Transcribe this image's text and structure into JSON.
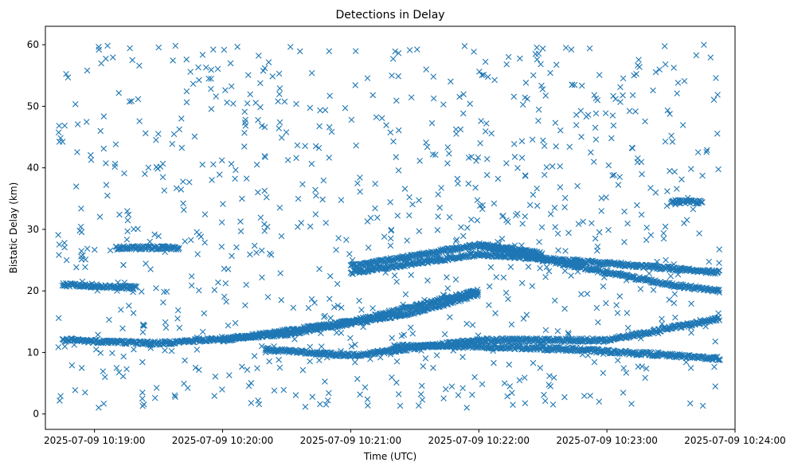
{
  "chart_data": {
    "type": "scatter",
    "title": "Detections in Delay",
    "xlabel": "Time (UTC)",
    "ylabel": "Bistatic Delay (km)",
    "marker": "x",
    "color": "#1f77b4",
    "grid": false,
    "x_type": "time",
    "xlim": [
      "2025-07-09 10:18:37",
      "2025-07-09 10:24:00"
    ],
    "ylim": [
      -2.5,
      63
    ],
    "x_ticks": [
      "2025-07-09 10:19:00",
      "2025-07-09 10:20:00",
      "2025-07-09 10:21:00",
      "2025-07-09 10:22:00",
      "2025-07-09 10:23:00",
      "2025-07-09 10:24:00"
    ],
    "y_ticks": [
      "0",
      "10",
      "20",
      "30",
      "40",
      "50",
      "60"
    ],
    "tracks": [
      {
        "x": [
          "2025-07-09 10:18:45",
          "2025-07-09 10:19:30",
          "2025-07-09 10:20:30",
          "2025-07-09 10:21:30",
          "2025-07-09 10:22:00"
        ],
        "y": [
          12,
          11.5,
          13,
          16.5,
          19.5
        ]
      },
      {
        "x": [
          "2025-07-09 10:20:00",
          "2025-07-09 10:21:00",
          "2025-07-09 10:21:30",
          "2025-07-09 10:22:00"
        ],
        "y": [
          12,
          15,
          17.5,
          20
        ]
      },
      {
        "x": [
          "2025-07-09 10:20:20",
          "2025-07-09 10:21:00",
          "2025-07-09 10:22:00",
          "2025-07-09 10:23:00",
          "2025-07-09 10:23:53"
        ],
        "y": [
          10.5,
          9.5,
          12,
          12,
          15.5
        ]
      },
      {
        "x": [
          "2025-07-09 10:21:00",
          "2025-07-09 10:22:00",
          "2025-07-09 10:23:00",
          "2025-07-09 10:23:53"
        ],
        "y": [
          23,
          26,
          24.5,
          23
        ]
      },
      {
        "x": [
          "2025-07-09 10:21:00",
          "2025-07-09 10:22:00",
          "2025-07-09 10:22:30"
        ],
        "y": [
          24,
          27.5,
          26
        ]
      },
      {
        "x": [
          "2025-07-09 10:22:00",
          "2025-07-09 10:22:45",
          "2025-07-09 10:23:30",
          "2025-07-09 10:23:53"
        ],
        "y": [
          27.5,
          24,
          21,
          20
        ]
      },
      {
        "x": [
          "2025-07-09 10:21:20",
          "2025-07-09 10:22:00",
          "2025-07-09 10:22:45",
          "2025-07-09 10:23:53"
        ],
        "y": [
          11,
          11,
          10.5,
          9
        ]
      },
      {
        "x": [
          "2025-07-09 10:18:45",
          "2025-07-09 10:19:20"
        ],
        "y": [
          21,
          20.5
        ]
      },
      {
        "x": [
          "2025-07-09 10:19:10",
          "2025-07-09 10:19:40"
        ],
        "y": [
          27,
          27
        ]
      },
      {
        "x": [
          "2025-07-09 10:23:30",
          "2025-07-09 10:23:45"
        ],
        "y": [
          34.5,
          34.5
        ]
      }
    ],
    "noise_count": 900,
    "noise_seed": 7
  }
}
